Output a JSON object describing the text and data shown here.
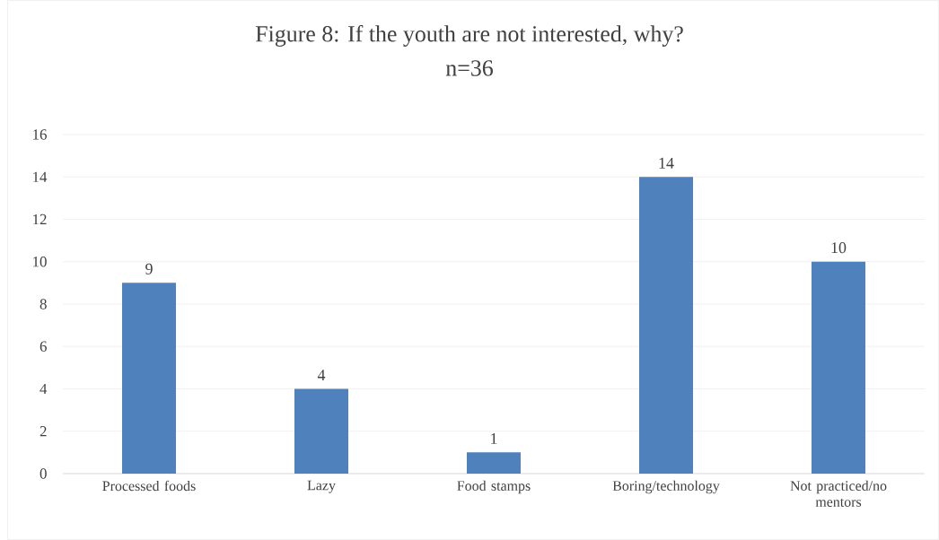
{
  "chart_data": {
    "type": "bar",
    "title": "Figure 8: If the youth are not interested, why?",
    "subtitle": "n=36",
    "categories": [
      "Processed foods",
      "Lazy",
      "Food stamps",
      "Boring/technology",
      "Not practiced/no mentors"
    ],
    "values": [
      9,
      4,
      1,
      14,
      10
    ],
    "color": "#4f81bd",
    "ylim": [
      0,
      16
    ],
    "yticks": [
      0,
      2,
      4,
      6,
      8,
      10,
      12,
      14,
      16
    ],
    "grid": "y",
    "data_labels": true
  }
}
